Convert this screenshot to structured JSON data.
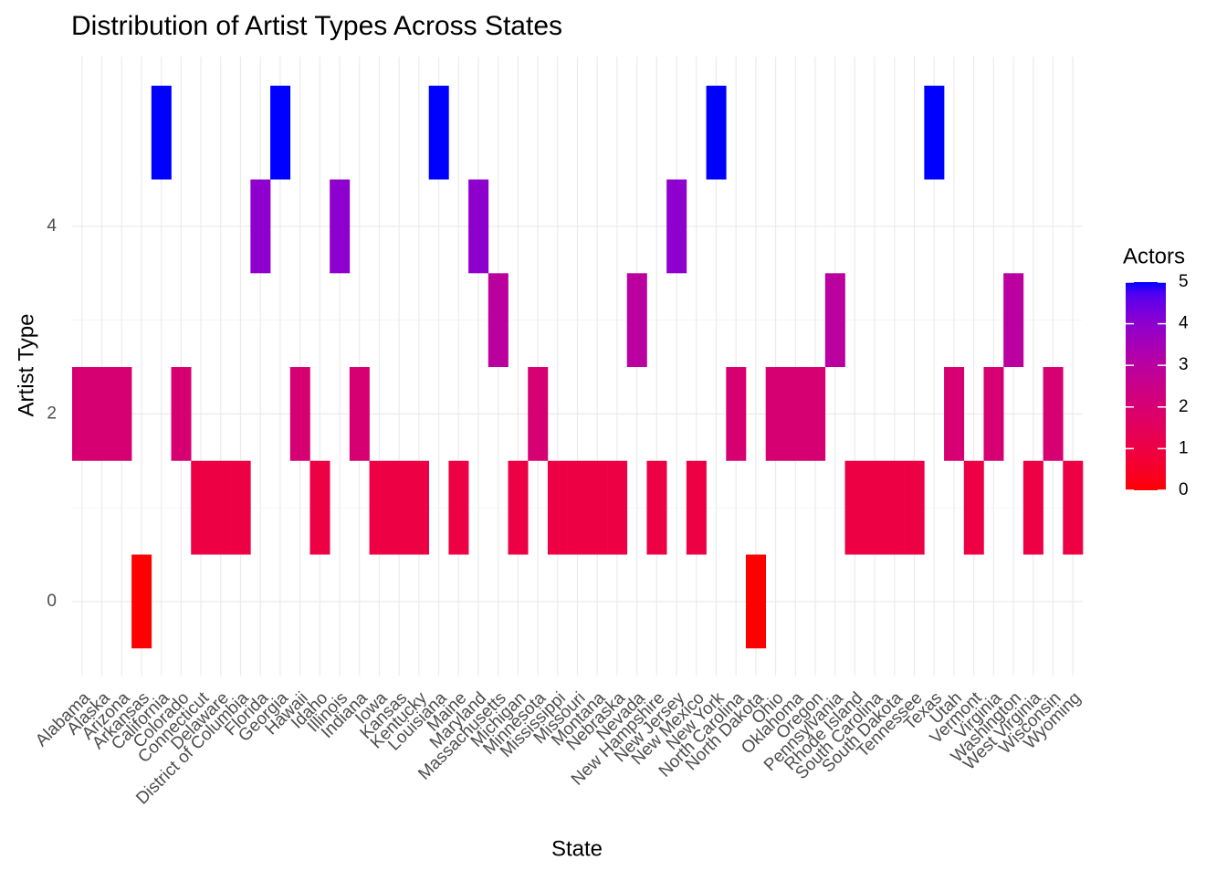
{
  "chart_data": {
    "type": "tile",
    "title": "Distribution of Artist Types Across States",
    "x_label": "State",
    "y_label": "Artist Type",
    "categories": [
      "Alabama",
      "Alaska",
      "Arizona",
      "Arkansas",
      "California",
      "Colorado",
      "Connecticut",
      "Delaware",
      "District of Columbia",
      "Florida",
      "Georgia",
      "Hawaii",
      "Idaho",
      "Illinois",
      "Indiana",
      "Iowa",
      "Kansas",
      "Kentucky",
      "Louisiana",
      "Maine",
      "Maryland",
      "Massachusetts",
      "Michigan",
      "Minnesota",
      "Mississippi",
      "Missouri",
      "Montana",
      "Nebraska",
      "Nevada",
      "New Hampshire",
      "New Jersey",
      "New Mexico",
      "New York",
      "North Carolina",
      "North Dakota",
      "Ohio",
      "Oklahoma",
      "Oregon",
      "Pennsylvania",
      "Rhode Island",
      "South Carolina",
      "South Dakota",
      "Tennessee",
      "Texas",
      "Utah",
      "Vermont",
      "Virginia",
      "Washington",
      "West Virginia",
      "Wisconsin",
      "Wyoming"
    ],
    "values": [
      2,
      2,
      2,
      0,
      5,
      2,
      1,
      1,
      1,
      4,
      5,
      2,
      1,
      4,
      2,
      1,
      1,
      1,
      5,
      1,
      4,
      3,
      1,
      2,
      1,
      1,
      1,
      1,
      3,
      1,
      4,
      1,
      5,
      2,
      0,
      2,
      2,
      2,
      3,
      1,
      1,
      1,
      1,
      5,
      2,
      1,
      2,
      3,
      1,
      2,
      1
    ],
    "ylim": [
      -0.79,
      5.81
    ],
    "yticks": [
      0,
      2,
      4
    ],
    "grid": true,
    "legend_title": "Actors",
    "color_low": "#ff0000",
    "color_high": "#0000ff",
    "clim": [
      0,
      5
    ],
    "cticks": [
      0,
      1,
      2,
      3,
      4,
      5
    ]
  }
}
